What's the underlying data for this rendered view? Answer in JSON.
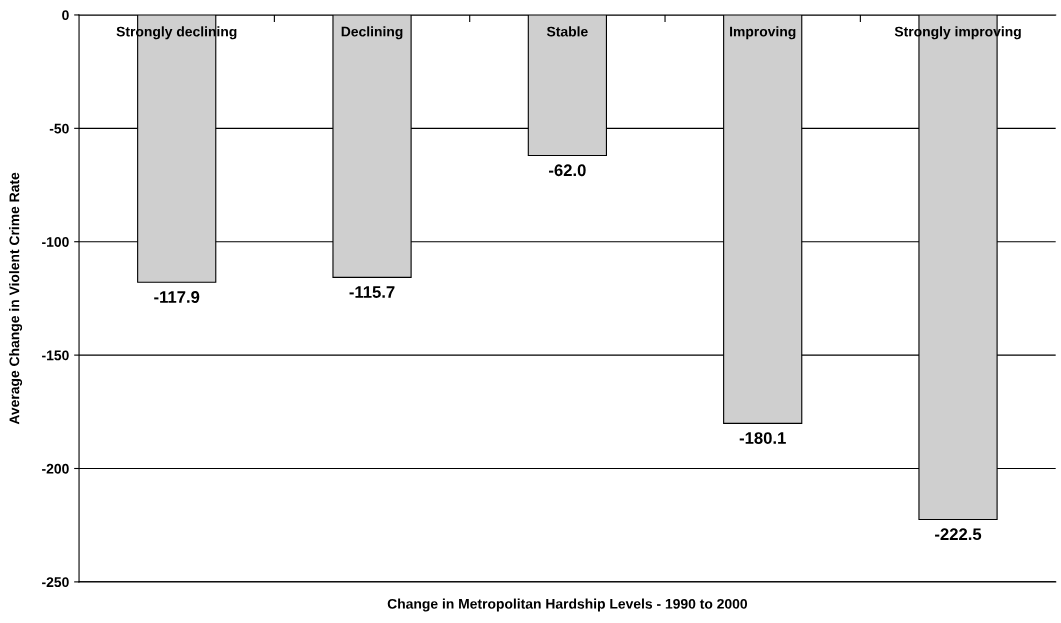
{
  "chart_data": {
    "type": "bar",
    "xlabel": "Change in Metropolitan Hardship Levels - 1990 to 2000",
    "ylabel": "Average Change in Violent Crime Rate",
    "categories": [
      "Strongly declining",
      "Declining",
      "Stable",
      "Improving",
      "Strongly improving"
    ],
    "values": [
      -117.9,
      -115.7,
      -62.0,
      -180.1,
      -222.5
    ],
    "value_labels": [
      "-117.9",
      "-115.7",
      "-62.0",
      "-180.1",
      "-222.5"
    ],
    "color": "#cfcfcf",
    "ylim": [
      -250,
      0
    ],
    "yticks": [
      0,
      -50,
      -100,
      -150,
      -200,
      -250
    ],
    "grid": "y",
    "legend": false
  }
}
